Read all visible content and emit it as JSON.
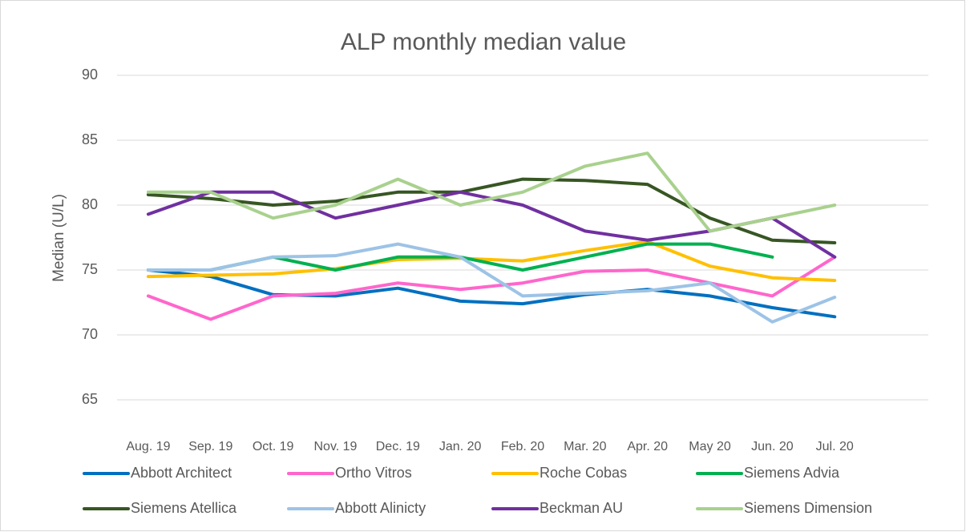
{
  "chart_data": {
    "type": "line",
    "title": "ALP monthly median value",
    "y_label": "Median (U/L)",
    "categories": [
      "Aug. 19",
      "Sep. 19",
      "Oct. 19",
      "Nov. 19",
      "Dec. 19",
      "Jan. 20",
      "Feb. 20",
      "Mar. 20",
      "Apr. 20",
      "May 20",
      "Jun. 20",
      "Jul. 20",
      null
    ],
    "series": [
      {
        "name": "Abbott Architect",
        "color": "#0070c0",
        "values": [
          75,
          74.5,
          73.1,
          73,
          73.6,
          72.6,
          72.4,
          73.1,
          73.5,
          73,
          72.1,
          71.4,
          null
        ]
      },
      {
        "name": "Ortho Vitros",
        "color": "#ff66cc",
        "values": [
          73,
          71.2,
          73,
          73.2,
          74,
          73.5,
          74,
          74.9,
          75,
          74,
          73,
          76,
          null
        ]
      },
      {
        "name": "Roche Cobas",
        "color": "#ffc000",
        "values": [
          74.5,
          74.6,
          74.7,
          75.1,
          75.8,
          75.9,
          75.7,
          76.5,
          77.2,
          75.3,
          74.4,
          74.2,
          null
        ]
      },
      {
        "name": "Siemens Advia",
        "color": "#00b050",
        "values": [
          75,
          75,
          76,
          75,
          76,
          76,
          75,
          76,
          77,
          77,
          76,
          null,
          null
        ]
      },
      {
        "name": "Siemens Atellica",
        "color": "#375623",
        "values": [
          80.8,
          80.5,
          80,
          80.3,
          81,
          81,
          82,
          81.9,
          81.6,
          79,
          77.3,
          77.1,
          null
        ]
      },
      {
        "name": "Abbott Alinicty",
        "color": "#9dc3e6",
        "values": [
          75,
          75,
          76,
          76.1,
          77,
          76,
          73,
          73.2,
          73.4,
          74,
          71,
          72.9,
          null
        ]
      },
      {
        "name": "Beckman AU",
        "color": "#7030a0",
        "values": [
          79.3,
          81,
          81,
          79,
          80,
          81,
          80,
          78,
          77.3,
          78,
          79,
          76,
          null
        ]
      },
      {
        "name": "Siemens Dimension",
        "color": "#a9d18e",
        "values": [
          81,
          81,
          79,
          80,
          82,
          80,
          81,
          83,
          84,
          78,
          79,
          80,
          null
        ]
      }
    ],
    "ylim": [
      65,
      90
    ],
    "yticks": [
      65,
      70,
      75,
      80,
      85,
      90
    ],
    "grid": true,
    "legend": "bottom"
  }
}
